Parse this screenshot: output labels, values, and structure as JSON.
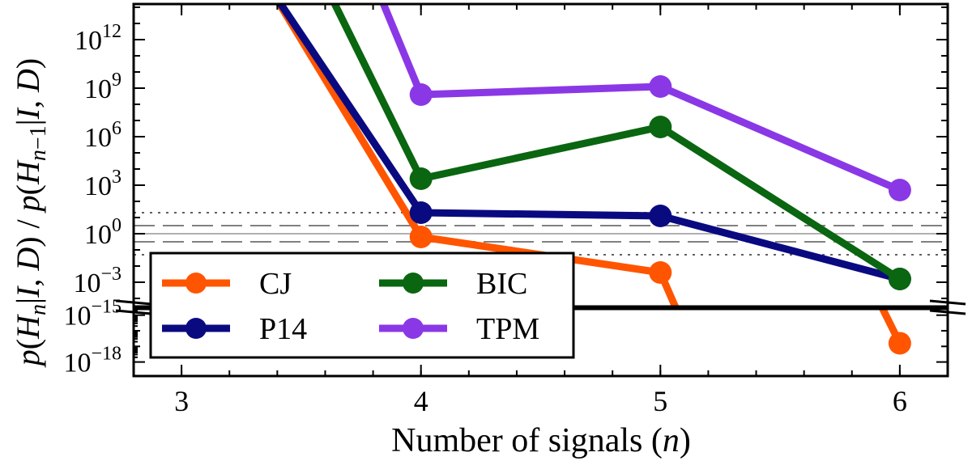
{
  "chart_data": {
    "type": "line",
    "xlabel": "Number of signals (n)",
    "xlabel_parts": [
      "Number of signals (",
      "n",
      ")"
    ],
    "ylabel": "p(H_n|I, D) / p(H_{n-1}|I, D)",
    "x_ticks": [
      "3",
      "4",
      "5",
      "6"
    ],
    "x": [
      3,
      4,
      5,
      6
    ],
    "xlim": [
      2.8,
      6.2
    ],
    "y_scale": "log10 (broken axis)",
    "upper_ylim_log10": [
      -4.5,
      14.2
    ],
    "lower_ylim_log10": [
      -18.9,
      -14.6
    ],
    "upper_ticks": [
      {
        "exp": 12,
        "label": "12"
      },
      {
        "exp": 9,
        "label": "9"
      },
      {
        "exp": 6,
        "label": "6"
      },
      {
        "exp": 3,
        "label": "3"
      },
      {
        "exp": 0,
        "label": "0"
      },
      {
        "exp": -3,
        "label": "−3"
      }
    ],
    "lower_ticks": [
      {
        "exp": -15,
        "label": "−15"
      },
      {
        "exp": -18,
        "label": "−18"
      }
    ],
    "tick_base": "10",
    "reference_lines_log10": [
      {
        "value": 0,
        "style": "solid"
      },
      {
        "value": 0.5,
        "style": "dashed"
      },
      {
        "value": -0.5,
        "style": "dashed"
      },
      {
        "value": 1.3,
        "style": "dotted"
      },
      {
        "value": -1.3,
        "style": "dotted"
      }
    ],
    "series": [
      {
        "name": "CJ",
        "color": "#ff5500",
        "log10_values": [
          null,
          -0.2,
          -2.4,
          -16.8
        ],
        "note": "line starts above the top of the plot near n=3.35"
      },
      {
        "name": "P14",
        "color": "#0a0a80",
        "log10_values": [
          null,
          1.3,
          1.1,
          -2.8
        ],
        "note": "line starts above the top of the plot near n=3.35"
      },
      {
        "name": "BIC",
        "color": "#0a6610",
        "log10_values": [
          null,
          3.4,
          6.6,
          -2.8
        ],
        "note": "line starts above the top of the plot near n=3.6"
      },
      {
        "name": "TPM",
        "color": "#8a38e6",
        "log10_values": [
          null,
          8.6,
          9.1,
          2.7
        ],
        "note": "line starts above the top of the plot near n=3.8"
      }
    ],
    "legend": {
      "placement": "lower-left",
      "entries": [
        "CJ",
        "BIC",
        "P14",
        "TPM"
      ]
    }
  }
}
